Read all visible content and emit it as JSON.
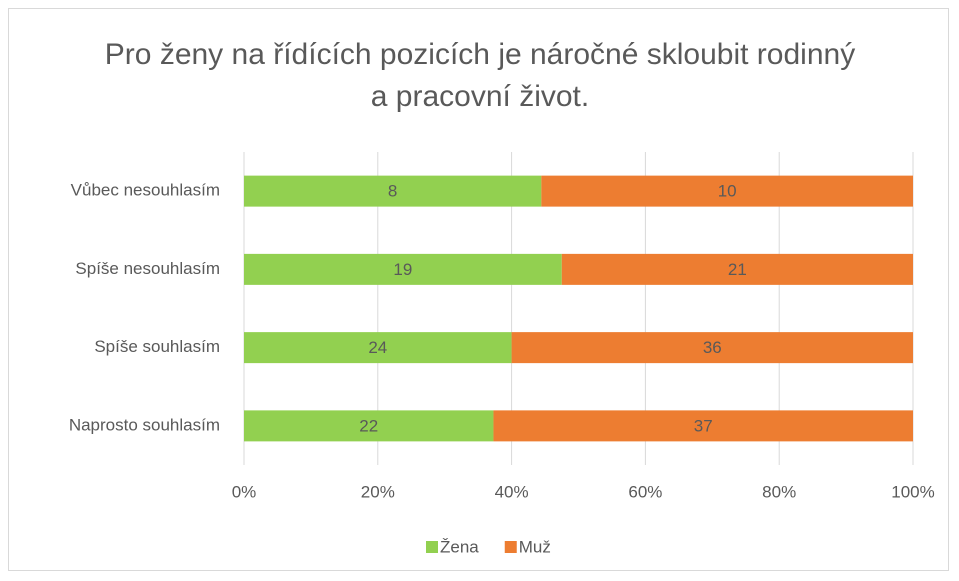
{
  "chart_data": {
    "type": "bar",
    "orientation": "horizontal",
    "stacked": "percent",
    "title": "Pro ženy na řídících pozicích je náročné skloubit rodinný a pracovní život.",
    "categories": [
      "Vůbec nesouhlasím",
      "Spíše nesouhlasím",
      "Spíše souhlasím",
      "Naprosto souhlasím"
    ],
    "series": [
      {
        "name": "Žena",
        "color": "#92d050",
        "values": [
          8,
          19,
          24,
          22
        ]
      },
      {
        "name": "Muž",
        "color": "#ed7d31",
        "values": [
          10,
          21,
          36,
          37
        ]
      }
    ],
    "xlim": [
      0,
      100
    ],
    "xticks": [
      {
        "value": 0,
        "label": "0%"
      },
      {
        "value": 20,
        "label": "20%"
      },
      {
        "value": 40,
        "label": "40%"
      },
      {
        "value": 60,
        "label": "60%"
      },
      {
        "value": 80,
        "label": "80%"
      },
      {
        "value": 100,
        "label": "100%"
      }
    ],
    "grid": true,
    "legend": "bottom"
  }
}
